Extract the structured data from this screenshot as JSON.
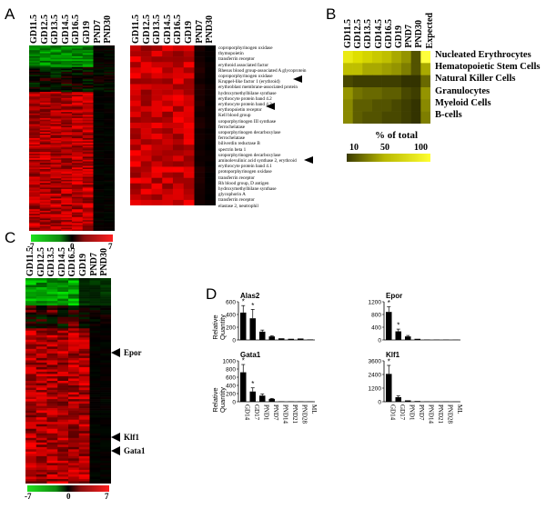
{
  "panel_a": {
    "letter": "A",
    "columns": [
      "GD11.5",
      "GD12.5",
      "GD13.5",
      "GD14.5",
      "GD16.5",
      "GD19",
      "PND7",
      "PND30"
    ],
    "scale": {
      "min": "-7",
      "mid": "0",
      "max": "7"
    },
    "genes": [
      "coproporphyrinogen oxidase",
      "thymopoietin",
      "transferrin receptor",
      "erythroid associated factor",
      "Rhesus blood group-associated A glycoprotein",
      "coproporphyrinogen oxidase",
      "Kruppel-like factor 1 (erythroid)",
      "erythroblast membrane-associated protein",
      "hydroxymethylbilane synthase",
      "erythrocyte protein band 4.2",
      "erythrocyte protein band 4.2",
      "erythropoietin receptor",
      "Kell blood group",
      "uroporphyrinogen III synthase",
      "ferrochelatase",
      "uroporphyrinogen decarboxylase",
      "ferrochelatase",
      "biliverdin reductase B",
      "spectrin beta 1",
      "uroporphyrinogen decarboxylase",
      "aminolevulinic acid synthase 2, erythroid",
      "erythrocyte protein band 4.1",
      "protoporphyrinogen oxidase",
      "transferrin receptor",
      "Rh blood group, D antigen",
      "hydroxymethylbilane synthase",
      "glycophorin A",
      "transferrin receptor",
      "elastase 2, neutrophil"
    ]
  },
  "panel_b": {
    "letter": "B",
    "columns": [
      "GD11.5",
      "GD12.5",
      "GD13.5",
      "GD14.5",
      "GD16.5",
      "GD19",
      "PND7",
      "PND30",
      "Expected"
    ],
    "cell_types": [
      "Nucleated Erythrocytes",
      "Hematopoietic Stem Cells",
      "Natural Killer Cells",
      "Granulocytes",
      "Myeloid Cells",
      "B-cells"
    ],
    "scale_title": "% of total",
    "scale_ticks": [
      "10",
      "50",
      "100"
    ]
  },
  "panel_c": {
    "letter": "C",
    "columns": [
      "GD11.5",
      "GD12.5",
      "GD13.5",
      "GD14.5",
      "GD16.5",
      "GD19",
      "PND7",
      "PND30"
    ],
    "labels": [
      "Epor",
      "Klf1",
      "Gata1"
    ],
    "scale": {
      "min": "-7",
      "mid": "0",
      "max": "7"
    }
  },
  "panel_d": {
    "letter": "D",
    "y_axis_label": [
      "Relative",
      "Quantity"
    ],
    "categories": [
      "GD14",
      "GD17",
      "PND1",
      "PND7",
      "PND14",
      "PND21",
      "PND28",
      "ML"
    ],
    "charts": [
      {
        "title": "Alas2",
        "ylim": [
          0,
          600
        ],
        "yticks": [
          "600",
          "400",
          "200",
          "0"
        ],
        "values": [
          430,
          340,
          130,
          55,
          25,
          18,
          22,
          8
        ],
        "errors": [
          110,
          140,
          25,
          10,
          5,
          4,
          5,
          2
        ],
        "stars": [
          true,
          true,
          false,
          false,
          false,
          false,
          false,
          false
        ]
      },
      {
        "title": "Epor",
        "ylim": [
          0,
          1200
        ],
        "yticks": [
          "1200",
          "800",
          "400",
          "0"
        ],
        "values": [
          880,
          270,
          110,
          35,
          12,
          10,
          10,
          6
        ],
        "errors": [
          160,
          70,
          30,
          8,
          3,
          2,
          2,
          2
        ],
        "stars": [
          true,
          true,
          false,
          false,
          false,
          false,
          false,
          false
        ]
      },
      {
        "title": "Gata1",
        "ylim": [
          0,
          1000
        ],
        "yticks": [
          "1000",
          "800",
          "600",
          "400",
          "200",
          "0"
        ],
        "values": [
          720,
          250,
          150,
          70,
          10,
          8,
          8,
          6
        ],
        "errors": [
          190,
          90,
          40,
          12,
          3,
          2,
          2,
          2
        ],
        "stars": [
          true,
          true,
          false,
          false,
          false,
          false,
          false,
          false
        ]
      },
      {
        "title": "Klf1",
        "ylim": [
          0,
          3600
        ],
        "yticks": [
          "3600",
          "2400",
          "1200",
          "0"
        ],
        "values": [
          2450,
          400,
          120,
          60,
          25,
          20,
          20,
          12
        ],
        "errors": [
          750,
          120,
          30,
          12,
          5,
          4,
          4,
          3
        ],
        "stars": [
          true,
          false,
          false,
          false,
          false,
          false,
          false,
          false
        ]
      }
    ]
  }
}
